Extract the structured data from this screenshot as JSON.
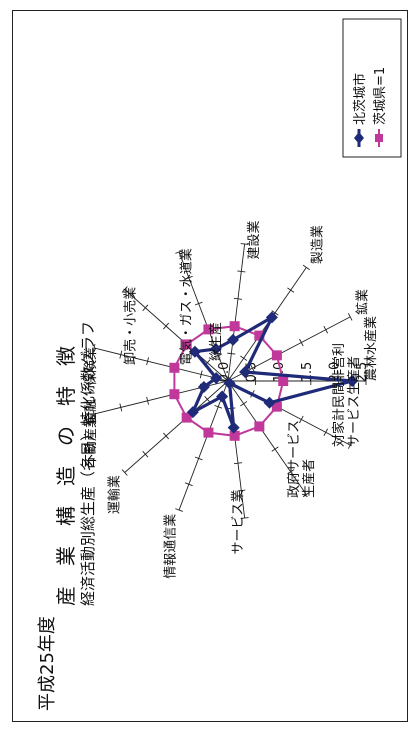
{
  "chart_data": {
    "type": "radar",
    "title_line1": "産　業　構　造　の　特　徴",
    "title_line2": "経済活動別総生産（名目）特化係数グラフ",
    "year_label": "平成25年度",
    "center_label": "総生産",
    "scale_ticks": [
      {
        "value": 0.0,
        "label": "0.0"
      },
      {
        "value": 0.5,
        "label": "0.5"
      },
      {
        "value": 1.0,
        "label": "1.0"
      },
      {
        "value": 1.5,
        "label": "1.5"
      },
      {
        "value": 2.0,
        "label": "2.0"
      },
      {
        "value": 2.5,
        "label": "2.5"
      }
    ],
    "rmax": 2.5,
    "categories": [
      "農林水産業",
      "鉱業",
      "製造業",
      "建設業",
      "電気・ガス・水道業",
      "卸売・小売業",
      "金融・保険業",
      "不動産業",
      "運輸業",
      "情報通信業",
      "サービス業",
      "政府サービス生産者",
      "対家計民間非営利サービス生産者"
    ],
    "category_labels": [
      [
        "農林水産業"
      ],
      [
        "鉱業"
      ],
      [
        "製造業"
      ],
      [
        "建設業"
      ],
      [
        "電気・ガス・水道業"
      ],
      [
        "卸売・小売業"
      ],
      [
        "金融・保険業"
      ],
      [
        "不動産業"
      ],
      [
        "運輸業"
      ],
      [
        "情報通信業"
      ],
      [
        "サービス業"
      ],
      [
        "政府サービス",
        "生産者"
      ],
      [
        "対家計民間非営利",
        "サービス生産者"
      ]
    ],
    "series": [
      {
        "name": "北茨城市",
        "color": "#1f2a78",
        "marker": "diamond",
        "values": [
          2.25,
          0.35,
          1.4,
          0.75,
          0.62,
          0.8,
          0.22,
          0.45,
          0.85,
          0.3,
          0.85,
          0.05,
          0.85
        ]
      },
      {
        "name": "茨城県=1",
        "color": "#c0399a",
        "marker": "square",
        "values": [
          1,
          1,
          1,
          1,
          1,
          1,
          1,
          1,
          1,
          1,
          1,
          1,
          1
        ]
      }
    ],
    "legend": "top-right"
  }
}
